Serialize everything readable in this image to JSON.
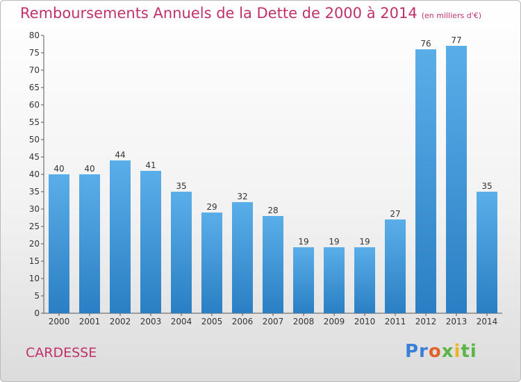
{
  "title": "Remboursements Annuels de la Dette de 2000 à 2014",
  "subtitle": "(en milliers d'€)",
  "commune": "CARDESSE",
  "logo": {
    "p1": "Pr",
    "p2": "o",
    "p3": "x",
    "p4": "i",
    "p5": "ti"
  },
  "colors": {
    "bar_top": "#5aaee8",
    "bar_bottom": "#2a7fc4",
    "title": "#c0306a"
  },
  "chart_data": {
    "type": "bar",
    "categories": [
      "2000",
      "2001",
      "2002",
      "2003",
      "2004",
      "2005",
      "2006",
      "2007",
      "2008",
      "2009",
      "2010",
      "2011",
      "2012",
      "2013",
      "2014"
    ],
    "values": [
      40,
      40,
      44,
      41,
      35,
      29,
      32,
      28,
      19,
      19,
      19,
      27,
      76,
      77,
      35
    ],
    "ylim": [
      0,
      80
    ],
    "yticks": [
      0,
      5,
      10,
      15,
      20,
      25,
      30,
      35,
      40,
      45,
      50,
      55,
      60,
      65,
      70,
      75,
      80
    ],
    "grid": false,
    "data_labels": true
  }
}
